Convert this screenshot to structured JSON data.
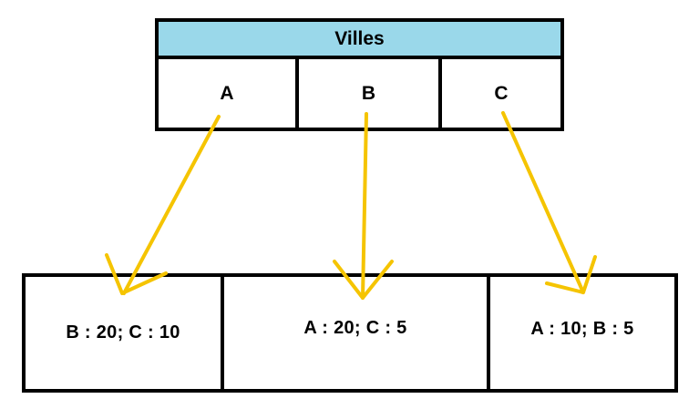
{
  "top_table": {
    "title": "Villes",
    "cells": [
      "A",
      "B",
      "C"
    ]
  },
  "bottom_table": {
    "cells": [
      "B : 20; C : 10",
      "A : 20; C : 5",
      "A : 10; B : 5"
    ]
  },
  "colors": {
    "header_fill": "#9ad8ea",
    "arrow": "#f5c400",
    "border": "#000000"
  }
}
